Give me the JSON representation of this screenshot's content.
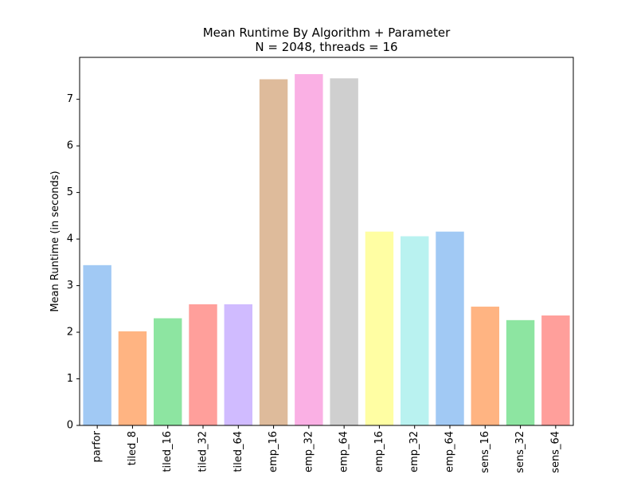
{
  "chart_data": {
    "type": "bar",
    "title": "Mean Runtime By Algorithm + Parameter",
    "subtitle": "N = 2048, threads = 16",
    "xlabel": "",
    "ylabel": "Mean Runtime (in seconds)",
    "ylim": [
      0,
      7.9
    ],
    "yticks": [
      0,
      1,
      2,
      3,
      4,
      5,
      6,
      7
    ],
    "grid": false,
    "categories": [
      "parfor",
      "tiled_8",
      "tiled_16",
      "tiled_32",
      "tiled_64",
      "emp_16",
      "emp_32",
      "emp_64",
      "emp_16",
      "emp_32",
      "emp_64",
      "sens_16",
      "sens_32",
      "sens_64"
    ],
    "values": [
      3.44,
      2.02,
      2.3,
      2.6,
      2.6,
      7.43,
      7.54,
      7.45,
      4.16,
      4.06,
      4.16,
      2.55,
      2.26,
      2.36
    ],
    "colors": [
      "#a1c9f4",
      "#ffb482",
      "#8de5a1",
      "#ff9f9b",
      "#d0bbff",
      "#debb9b",
      "#fab0e4",
      "#cfcfcf",
      "#fffea3",
      "#b9f2f0",
      "#a1c9f4",
      "#ffb482",
      "#8de5a1",
      "#ff9f9b"
    ]
  }
}
